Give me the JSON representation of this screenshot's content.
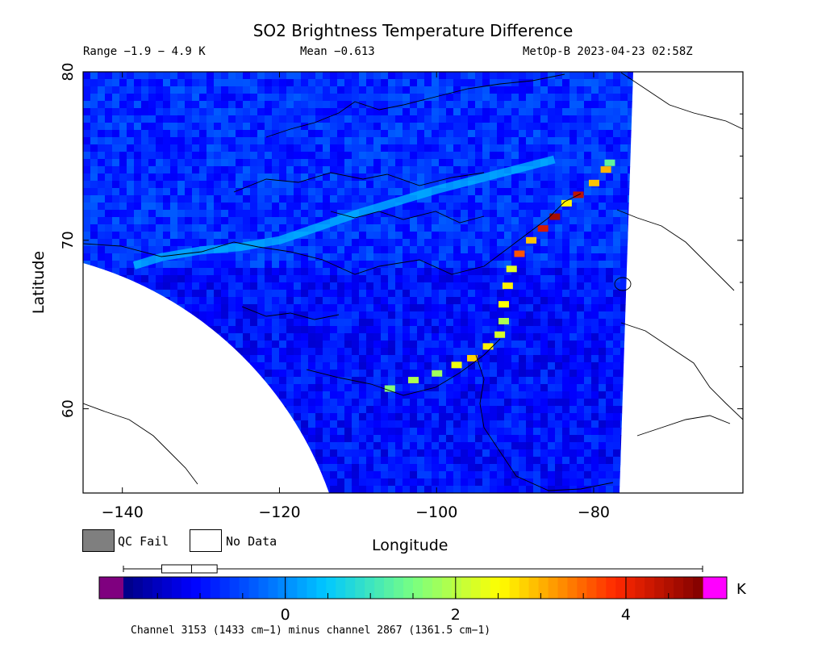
{
  "chart_data": {
    "type": "heatmap",
    "title": "SO2 Brightness Temperature Difference",
    "range_text": "Range −1.9 − 4.9 K",
    "mean_text": "Mean −0.613",
    "satellite_text": "MetOp-B 2023-04-23 02:58Z",
    "xlabel": "Longitude",
    "ylabel": "Latitude",
    "xlim": [
      -145,
      -61
    ],
    "ylim": [
      55,
      80
    ],
    "xticks": [
      -140,
      -120,
      -100,
      -80
    ],
    "yticks": [
      60,
      70,
      80
    ],
    "colorbar": {
      "range": [
        -1.9,
        4.9
      ],
      "ticks": [
        0,
        2,
        4
      ],
      "unit": "K",
      "box_stats": [
        -1.9,
        -1.45,
        -1.1,
        -0.8,
        4.9
      ]
    },
    "so2_plume_path": [
      [
        -138.5,
        68.5
      ],
      [
        -135,
        69.0
      ],
      [
        -130,
        69.4
      ],
      [
        -125,
        69.6
      ],
      [
        -120,
        70.0
      ],
      [
        -115,
        70.8
      ],
      [
        -110,
        71.6
      ],
      [
        -105,
        72.3
      ],
      [
        -100,
        73.0
      ],
      [
        -95,
        73.6
      ],
      [
        -90,
        74.2
      ],
      [
        -85,
        74.8
      ]
    ],
    "enhanced_track": [
      {
        "lon": -106,
        "lat": 61.2,
        "value": 1.6
      },
      {
        "lon": -103,
        "lat": 61.7,
        "value": 1.9
      },
      {
        "lon": -100,
        "lat": 62.1,
        "value": 1.8
      },
      {
        "lon": -97.5,
        "lat": 62.6,
        "value": 2.4
      },
      {
        "lon": -95.5,
        "lat": 63.0,
        "value": 2.8
      },
      {
        "lon": -93.5,
        "lat": 63.7,
        "value": 2.6
      },
      {
        "lon": -92,
        "lat": 64.4,
        "value": 2.2
      },
      {
        "lon": -91.5,
        "lat": 65.2,
        "value": 1.9
      },
      {
        "lon": -91.5,
        "lat": 66.2,
        "value": 2.5
      },
      {
        "lon": -91,
        "lat": 67.3,
        "value": 2.6
      },
      {
        "lon": -90.5,
        "lat": 68.3,
        "value": 2.3
      },
      {
        "lon": -89.5,
        "lat": 69.2,
        "value": 3.6
      },
      {
        "lon": -88,
        "lat": 70.0,
        "value": 2.9
      },
      {
        "lon": -86.5,
        "lat": 70.7,
        "value": 4.2
      },
      {
        "lon": -85,
        "lat": 71.4,
        "value": 4.6
      },
      {
        "lon": -83.5,
        "lat": 72.2,
        "value": 2.6
      },
      {
        "lon": -82,
        "lat": 72.7,
        "value": 4.4
      },
      {
        "lon": -80,
        "lat": 73.4,
        "value": 2.9
      },
      {
        "lon": -78.5,
        "lat": 74.2,
        "value": 3.0
      },
      {
        "lon": -78,
        "lat": 74.6,
        "value": 1.3
      }
    ]
  },
  "legend": {
    "qc_fail_label": "QC Fail",
    "no_data_label": "No Data",
    "qc_fail_color": "#7f7f7f",
    "no_data_color": "#ffffff"
  },
  "footer_text": "Channel 3153 (1433 cm−1) minus channel 2867 (1361.5 cm−1)",
  "colors": {
    "land_outline": "#000000",
    "background_field": "#1e4bd8",
    "below_range": "#7f007f",
    "above_range": "#ff00ff"
  }
}
